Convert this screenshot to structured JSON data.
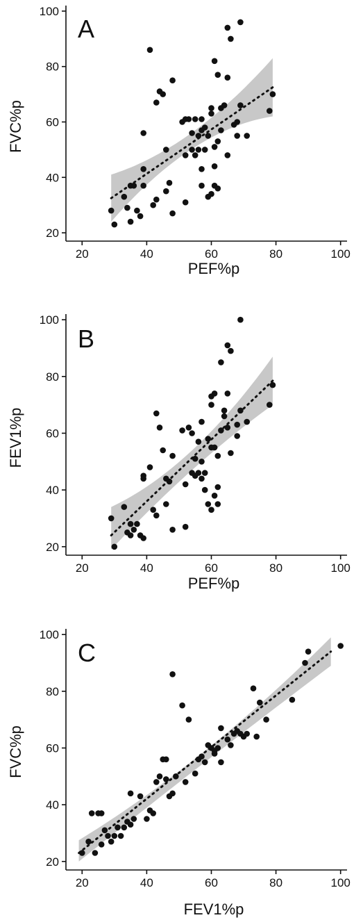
{
  "chart_data": [
    {
      "type": "scatter",
      "panel_label": "A",
      "xlabel": "PEF%p",
      "ylabel": "FVC%p",
      "xlim": [
        15,
        102
      ],
      "ylim": [
        17,
        102
      ],
      "xticks": [
        20,
        40,
        60,
        80,
        100
      ],
      "yticks": [
        20,
        40,
        60,
        80,
        100
      ],
      "grid": false,
      "points": [
        [
          29,
          28
        ],
        [
          30,
          23
        ],
        [
          33,
          33
        ],
        [
          34,
          29
        ],
        [
          35,
          24
        ],
        [
          35,
          37
        ],
        [
          36,
          37
        ],
        [
          37,
          28
        ],
        [
          38,
          26
        ],
        [
          39,
          56
        ],
        [
          39,
          43
        ],
        [
          39,
          37
        ],
        [
          41,
          86
        ],
        [
          42,
          30
        ],
        [
          43,
          32
        ],
        [
          43,
          67
        ],
        [
          44,
          71
        ],
        [
          45,
          70
        ],
        [
          46,
          50
        ],
        [
          46,
          35
        ],
        [
          47,
          38
        ],
        [
          48,
          75
        ],
        [
          48,
          27
        ],
        [
          51,
          60
        ],
        [
          52,
          61
        ],
        [
          52,
          48
        ],
        [
          52,
          31
        ],
        [
          53,
          61
        ],
        [
          54,
          56
        ],
        [
          54,
          50
        ],
        [
          55,
          61
        ],
        [
          55,
          48
        ],
        [
          56,
          55
        ],
        [
          56,
          50
        ],
        [
          57,
          61
        ],
        [
          57,
          57
        ],
        [
          57,
          43
        ],
        [
          57,
          37
        ],
        [
          58,
          58
        ],
        [
          58,
          50
        ],
        [
          59,
          55
        ],
        [
          59,
          33
        ],
        [
          60,
          65
        ],
        [
          60,
          63
        ],
        [
          60,
          34
        ],
        [
          61,
          82
        ],
        [
          61,
          51
        ],
        [
          61,
          44
        ],
        [
          61,
          37
        ],
        [
          62,
          77
        ],
        [
          62,
          53
        ],
        [
          62,
          36
        ],
        [
          63,
          65
        ],
        [
          63,
          57
        ],
        [
          64,
          66
        ],
        [
          65,
          94
        ],
        [
          65,
          76
        ],
        [
          65,
          48
        ],
        [
          66,
          90
        ],
        [
          67,
          59
        ],
        [
          68,
          55
        ],
        [
          68,
          60
        ],
        [
          69,
          96
        ],
        [
          69,
          66
        ],
        [
          71,
          55
        ],
        [
          78,
          64
        ],
        [
          79,
          70
        ]
      ],
      "fit": {
        "x": [
          29,
          79
        ],
        "y": [
          32.5,
          72.5
        ],
        "ci_at_min": [
          24,
          41
        ],
        "ci_at_mean": [
          51,
          57
        ],
        "ci_at_max": [
          62,
          83
        ],
        "x_mean": 55
      },
      "colors": {
        "points": "#111111",
        "band": "#c8c8c8",
        "line": "#111111"
      }
    },
    {
      "type": "scatter",
      "panel_label": "B",
      "xlabel": "PEF%p",
      "ylabel": "FEV1%p",
      "xlim": [
        15,
        102
      ],
      "ylim": [
        17,
        102
      ],
      "xticks": [
        20,
        40,
        60,
        80,
        100
      ],
      "yticks": [
        20,
        40,
        60,
        80,
        100
      ],
      "grid": false,
      "points": [
        [
          29,
          30
        ],
        [
          30,
          20
        ],
        [
          33,
          34
        ],
        [
          34,
          25
        ],
        [
          35,
          24
        ],
        [
          35,
          28
        ],
        [
          36,
          26
        ],
        [
          37,
          28
        ],
        [
          38,
          24
        ],
        [
          39,
          45
        ],
        [
          39,
          44
        ],
        [
          39,
          23
        ],
        [
          41,
          48
        ],
        [
          42,
          33
        ],
        [
          43,
          31
        ],
        [
          43,
          67
        ],
        [
          44,
          62
        ],
        [
          45,
          54
        ],
        [
          46,
          44
        ],
        [
          46,
          35
        ],
        [
          47,
          43
        ],
        [
          48,
          52
        ],
        [
          48,
          26
        ],
        [
          51,
          61
        ],
        [
          52,
          42
        ],
        [
          52,
          27
        ],
        [
          53,
          62
        ],
        [
          54,
          60
        ],
        [
          54,
          46
        ],
        [
          55,
          45
        ],
        [
          55,
          51
        ],
        [
          56,
          57
        ],
        [
          56,
          46
        ],
        [
          57,
          64
        ],
        [
          57,
          50
        ],
        [
          57,
          44
        ],
        [
          58,
          46
        ],
        [
          58,
          40
        ],
        [
          59,
          58
        ],
        [
          59,
          35
        ],
        [
          60,
          55
        ],
        [
          60,
          33
        ],
        [
          60,
          70
        ],
        [
          60,
          73
        ],
        [
          61,
          74
        ],
        [
          61,
          55
        ],
        [
          61,
          38
        ],
        [
          62,
          52
        ],
        [
          62,
          41
        ],
        [
          62,
          35
        ],
        [
          63,
          85
        ],
        [
          63,
          61
        ],
        [
          64,
          68
        ],
        [
          64,
          66
        ],
        [
          65,
          91
        ],
        [
          65,
          74
        ],
        [
          65,
          62
        ],
        [
          66,
          89
        ],
        [
          66,
          53
        ],
        [
          68,
          59
        ],
        [
          68,
          63
        ],
        [
          69,
          100
        ],
        [
          69,
          68
        ],
        [
          71,
          64
        ],
        [
          78,
          70
        ],
        [
          79,
          77
        ]
      ],
      "fit": {
        "x": [
          29,
          79
        ],
        "y": [
          24,
          78.5
        ],
        "ci_at_min": [
          19,
          34
        ],
        "ci_at_mean": [
          48,
          55
        ],
        "ci_at_max": [
          70,
          87
        ],
        "x_mean": 55
      },
      "colors": {
        "points": "#111111",
        "band": "#c8c8c8",
        "line": "#111111"
      }
    },
    {
      "type": "scatter",
      "panel_label": "C",
      "xlabel": "FEV1%p",
      "ylabel": "FVC%p",
      "xlim": [
        15,
        102
      ],
      "ylim": [
        17,
        102
      ],
      "xticks": [
        20,
        40,
        60,
        80,
        100
      ],
      "yticks": [
        20,
        40,
        60,
        80,
        100
      ],
      "grid": false,
      "points": [
        [
          20,
          23
        ],
        [
          22,
          27
        ],
        [
          23,
          37
        ],
        [
          24,
          23
        ],
        [
          25,
          37
        ],
        [
          26,
          37
        ],
        [
          26,
          26
        ],
        [
          27,
          31
        ],
        [
          28,
          29
        ],
        [
          29,
          27
        ],
        [
          30,
          29
        ],
        [
          31,
          32
        ],
        [
          32,
          29
        ],
        [
          33,
          32
        ],
        [
          34,
          34
        ],
        [
          35,
          33
        ],
        [
          35,
          44
        ],
        [
          36,
          35
        ],
        [
          38,
          43
        ],
        [
          40,
          35
        ],
        [
          41,
          38
        ],
        [
          42,
          37
        ],
        [
          43,
          48
        ],
        [
          44,
          50
        ],
        [
          45,
          56
        ],
        [
          46,
          56
        ],
        [
          46,
          49
        ],
        [
          47,
          43
        ],
        [
          48,
          44
        ],
        [
          48,
          86
        ],
        [
          49,
          50
        ],
        [
          51,
          75
        ],
        [
          52,
          48
        ],
        [
          53,
          70
        ],
        [
          55,
          51
        ],
        [
          56,
          56
        ],
        [
          57,
          57
        ],
        [
          58,
          55
        ],
        [
          59,
          61
        ],
        [
          60,
          60
        ],
        [
          61,
          58
        ],
        [
          61,
          59
        ],
        [
          62,
          60
        ],
        [
          63,
          55
        ],
        [
          63,
          67
        ],
        [
          65,
          63
        ],
        [
          66,
          61
        ],
        [
          67,
          65
        ],
        [
          68,
          66
        ],
        [
          69,
          65
        ],
        [
          70,
          64
        ],
        [
          71,
          65
        ],
        [
          73,
          81
        ],
        [
          74,
          64
        ],
        [
          75,
          76
        ],
        [
          77,
          70
        ],
        [
          85,
          77
        ],
        [
          89,
          90
        ],
        [
          90,
          94
        ],
        [
          100,
          96
        ]
      ],
      "fit": {
        "x": [
          19,
          97
        ],
        "y": [
          23,
          94
        ],
        "ci_at_min": [
          20,
          27.5
        ],
        "ci_at_mean": [
          55,
          59
        ],
        "ci_at_max": [
          89,
          99
        ],
        "x_mean": 58
      },
      "colors": {
        "points": "#111111",
        "band": "#c8c8c8",
        "line": "#111111"
      }
    }
  ]
}
